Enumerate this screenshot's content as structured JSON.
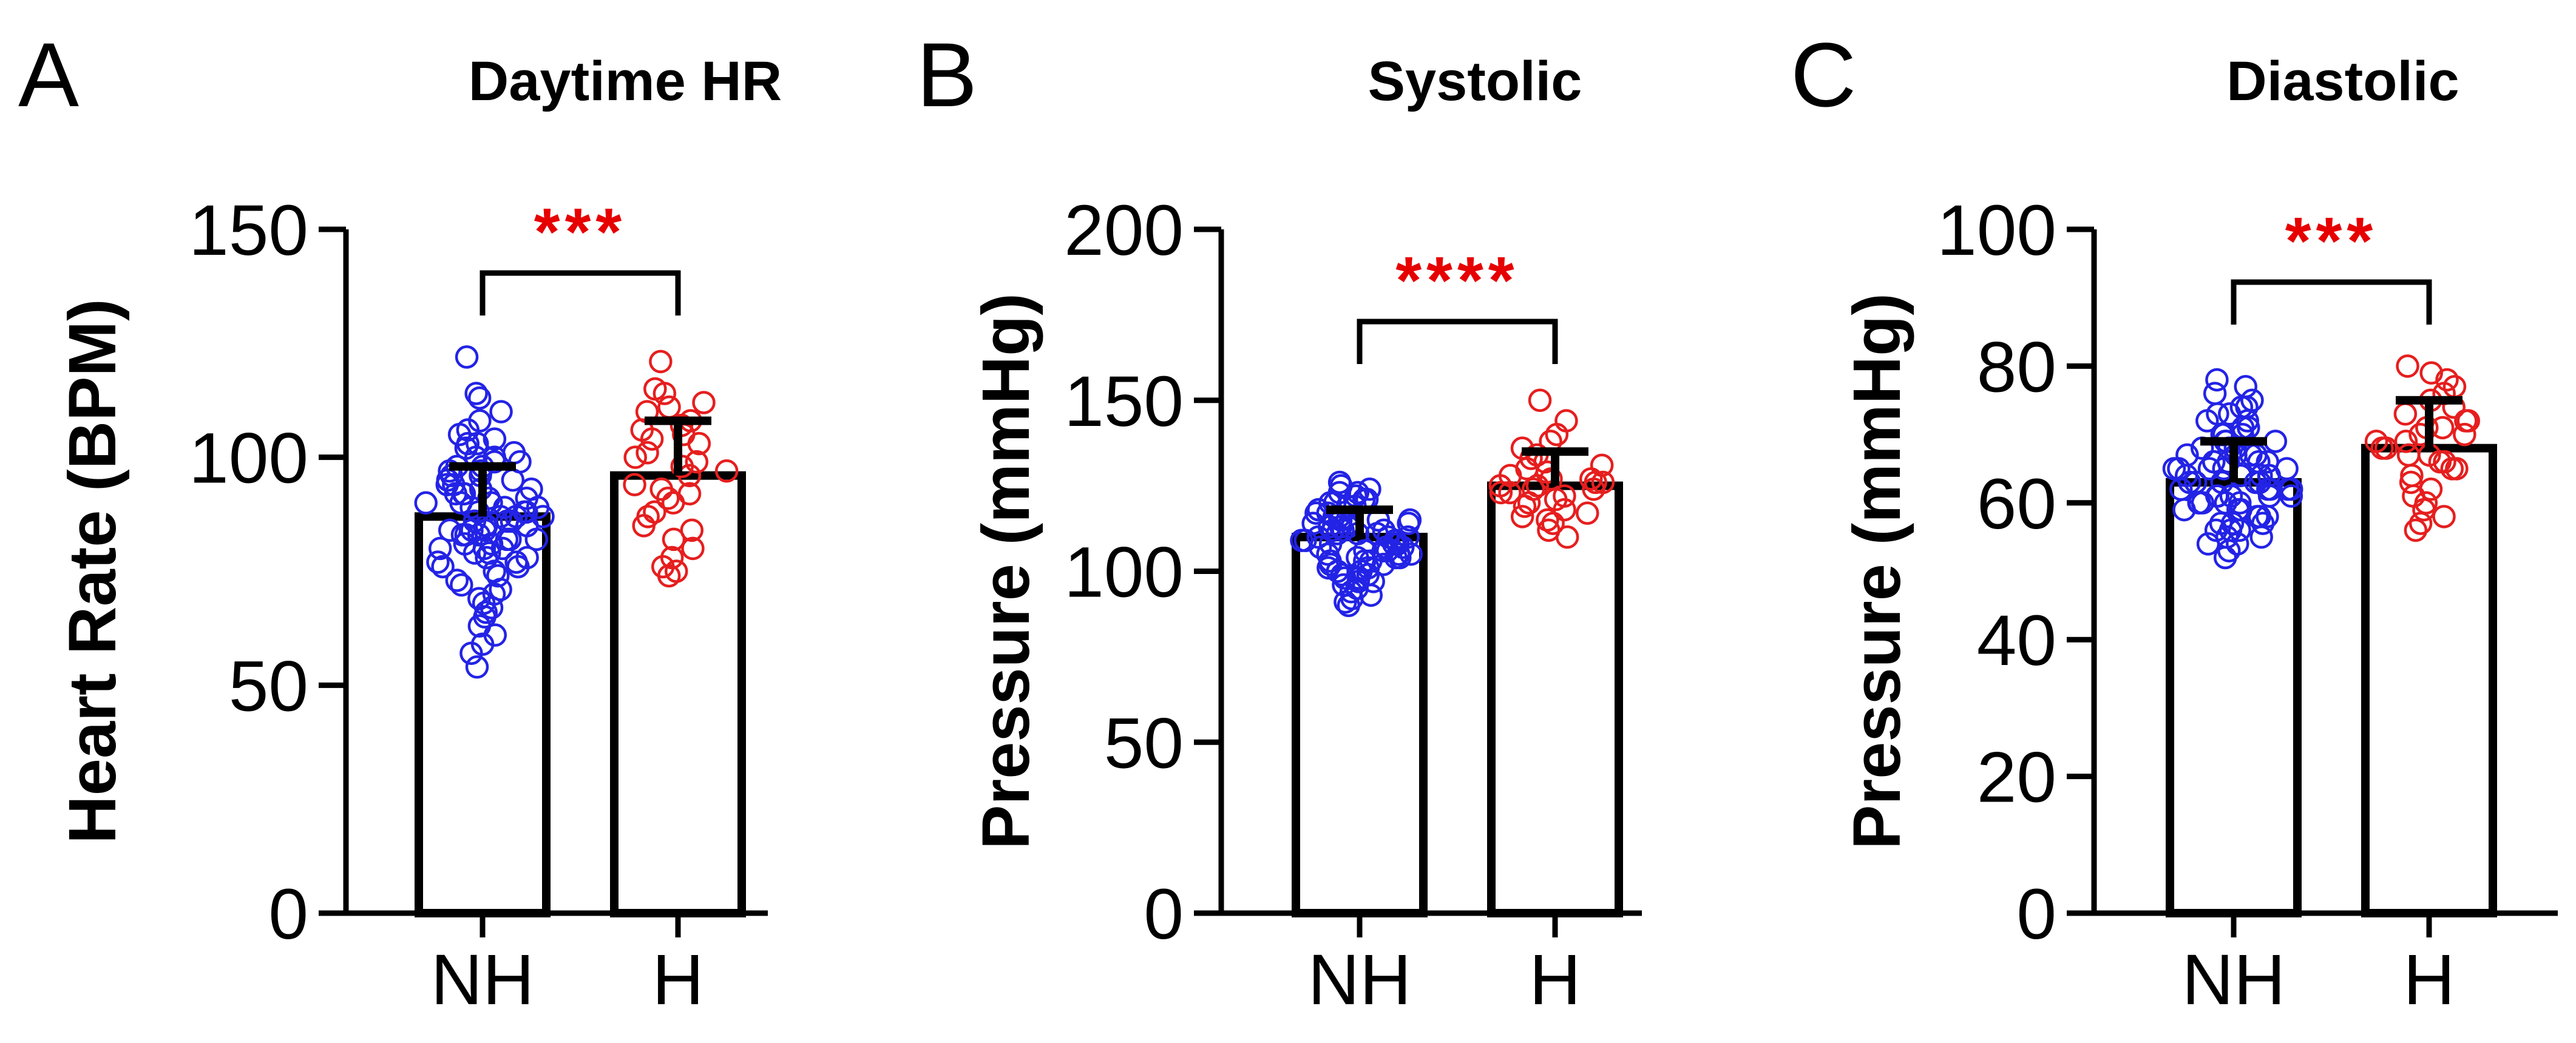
{
  "chart_data": [
    {
      "type": "bar",
      "panel": "A",
      "title": "Daytime HR",
      "ylabel": "Heart  Rate (BPM)",
      "xlabel": "",
      "ylim": [
        0,
        150
      ],
      "yticks": [
        0,
        50,
        100,
        150
      ],
      "categories": [
        "NH",
        "H"
      ],
      "means": [
        87,
        96
      ],
      "sd": [
        11,
        12
      ],
      "point_colors": [
        "#2323e6",
        "#e61e1e"
      ],
      "significance": "***",
      "significance_color": "#e60000",
      "points": [
        [
          122,
          114,
          113,
          110,
          108,
          106,
          105,
          104,
          103,
          103,
          102,
          101,
          100,
          100,
          99,
          99,
          98,
          98,
          97,
          97,
          96,
          96,
          95,
          95,
          94,
          94,
          93,
          93,
          92,
          92,
          92,
          91,
          91,
          90,
          90,
          90,
          89,
          89,
          89,
          88,
          88,
          88,
          87,
          87,
          87,
          86,
          86,
          86,
          85,
          85,
          85,
          84,
          84,
          84,
          83,
          83,
          83,
          82,
          82,
          82,
          81,
          81,
          80,
          80,
          80,
          79,
          79,
          78,
          78,
          77,
          77,
          76,
          76,
          75,
          74,
          73,
          72,
          71,
          70,
          69,
          68,
          67,
          66,
          65,
          63,
          61,
          59,
          57,
          54
        ],
        [
          121,
          115,
          114,
          112,
          111,
          110,
          108,
          107,
          106,
          105,
          104,
          103,
          101,
          100,
          99,
          98,
          97,
          96,
          94,
          93,
          92,
          91,
          90,
          88,
          87,
          85,
          84,
          82,
          80,
          78,
          76,
          75,
          74
        ]
      ]
    },
    {
      "type": "bar",
      "panel": "B",
      "title": "Systolic",
      "ylabel": "Pressure  (mmHg)",
      "xlabel": "",
      "ylim": [
        0,
        200
      ],
      "yticks": [
        0,
        50,
        100,
        150,
        200
      ],
      "categories": [
        "NH",
        "H"
      ],
      "means": [
        110,
        125
      ],
      "sd": [
        8,
        10
      ],
      "point_colors": [
        "#2323e6",
        "#e61e1e"
      ],
      "significance": "****",
      "significance_color": "#e60000",
      "points": [
        [
          126,
          125,
          124,
          123,
          123,
          122,
          121,
          121,
          120,
          120,
          119,
          119,
          118,
          118,
          117,
          117,
          116,
          116,
          115,
          115,
          115,
          114,
          114,
          114,
          113,
          113,
          113,
          112,
          112,
          112,
          111,
          111,
          111,
          110,
          110,
          110,
          109,
          109,
          109,
          108,
          108,
          108,
          107,
          107,
          107,
          106,
          106,
          106,
          105,
          105,
          105,
          104,
          104,
          104,
          103,
          103,
          103,
          102,
          102,
          101,
          101,
          100,
          100,
          99,
          99,
          98,
          98,
          97,
          97,
          96,
          95,
          94,
          93,
          92,
          91,
          90
        ],
        [
          150,
          144,
          140,
          138,
          136,
          134,
          133,
          132,
          131,
          130,
          129,
          128,
          127,
          127,
          126,
          126,
          125,
          125,
          124,
          124,
          123,
          123,
          122,
          121,
          120,
          119,
          118,
          117,
          116,
          115,
          114,
          112,
          110
        ]
      ]
    },
    {
      "type": "bar",
      "panel": "C",
      "title": "Diastolic",
      "ylabel": "Pressure  (mmHg)",
      "xlabel": "",
      "ylim": [
        0,
        100
      ],
      "yticks": [
        0,
        20,
        40,
        60,
        80,
        100
      ],
      "categories": [
        "NH",
        "H"
      ],
      "means": [
        63,
        68
      ],
      "sd": [
        6,
        7
      ],
      "point_colors": [
        "#2323e6",
        "#e61e1e"
      ],
      "significance": "***",
      "significance_color": "#e60000",
      "points": [
        [
          78,
          77,
          76,
          75,
          74,
          74,
          73,
          73,
          72,
          72,
          71,
          71,
          70,
          70,
          70,
          69,
          69,
          69,
          68,
          68,
          68,
          67,
          67,
          67,
          66,
          66,
          66,
          66,
          65,
          65,
          65,
          65,
          64,
          64,
          64,
          64,
          63,
          63,
          63,
          63,
          62,
          62,
          62,
          62,
          61,
          61,
          61,
          61,
          60,
          60,
          60,
          60,
          59,
          59,
          59,
          58,
          58,
          58,
          57,
          57,
          57,
          56,
          56,
          56,
          55,
          55,
          54,
          54,
          53,
          52,
          65,
          64,
          63,
          62,
          61,
          60,
          66,
          67
        ],
        [
          80,
          79,
          78,
          77,
          76,
          75,
          74,
          73,
          72,
          72,
          71,
          71,
          70,
          70,
          69,
          69,
          68,
          68,
          67,
          67,
          66,
          66,
          65,
          65,
          64,
          63,
          62,
          61,
          60,
          59,
          58,
          57,
          56
        ]
      ]
    }
  ]
}
